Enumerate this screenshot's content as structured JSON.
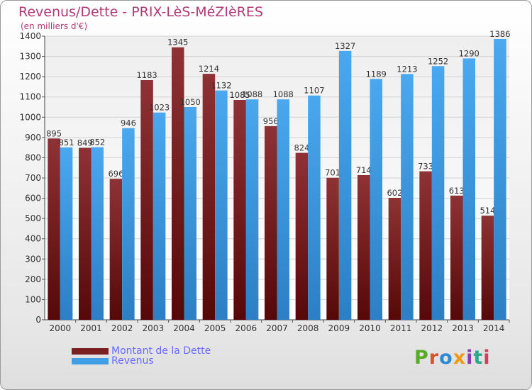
{
  "header": {
    "title": "Revenus/Dette - PRIX-LèS-MéZIèRES",
    "subtitle": "(en milliers d'€)"
  },
  "legend": [
    {
      "label": "Montant de la Dette",
      "color": "#7a1f22"
    },
    {
      "label": "Revenus",
      "color": "#3f9ee6"
    }
  ],
  "logo": {
    "text": "Proxiti",
    "colors": [
      "#5aaa2a",
      "#d8522a",
      "#2a8ad8",
      "#e89a1a",
      "#8c3ab0",
      "#2aaa8a",
      "#d83a5a"
    ]
  },
  "chart_data": {
    "type": "bar",
    "title": "Revenus/Dette - PRIX-LèS-MéZIèRES",
    "ylabel": "(en milliers d'€)",
    "xlabel": "",
    "ylim": [
      0,
      1400
    ],
    "ytick_step": 100,
    "grid": true,
    "categories": [
      "2000",
      "2001",
      "2002",
      "2003",
      "2004",
      "2005",
      "2006",
      "2007",
      "2008",
      "2009",
      "2010",
      "2011",
      "2012",
      "2013",
      "2014"
    ],
    "series": [
      {
        "name": "Montant de la Dette",
        "color": "#7a1f22",
        "values": [
          895,
          849,
          696,
          1183,
          1345,
          1214,
          1085,
          956,
          824,
          701,
          714,
          602,
          733,
          613,
          514
        ]
      },
      {
        "name": "Revenus",
        "color": "#3f9ee6",
        "values": [
          851,
          852,
          946,
          1023,
          1050,
          1132,
          1088,
          1088,
          1107,
          1327,
          1189,
          1213,
          1252,
          1290,
          1386
        ]
      }
    ]
  }
}
